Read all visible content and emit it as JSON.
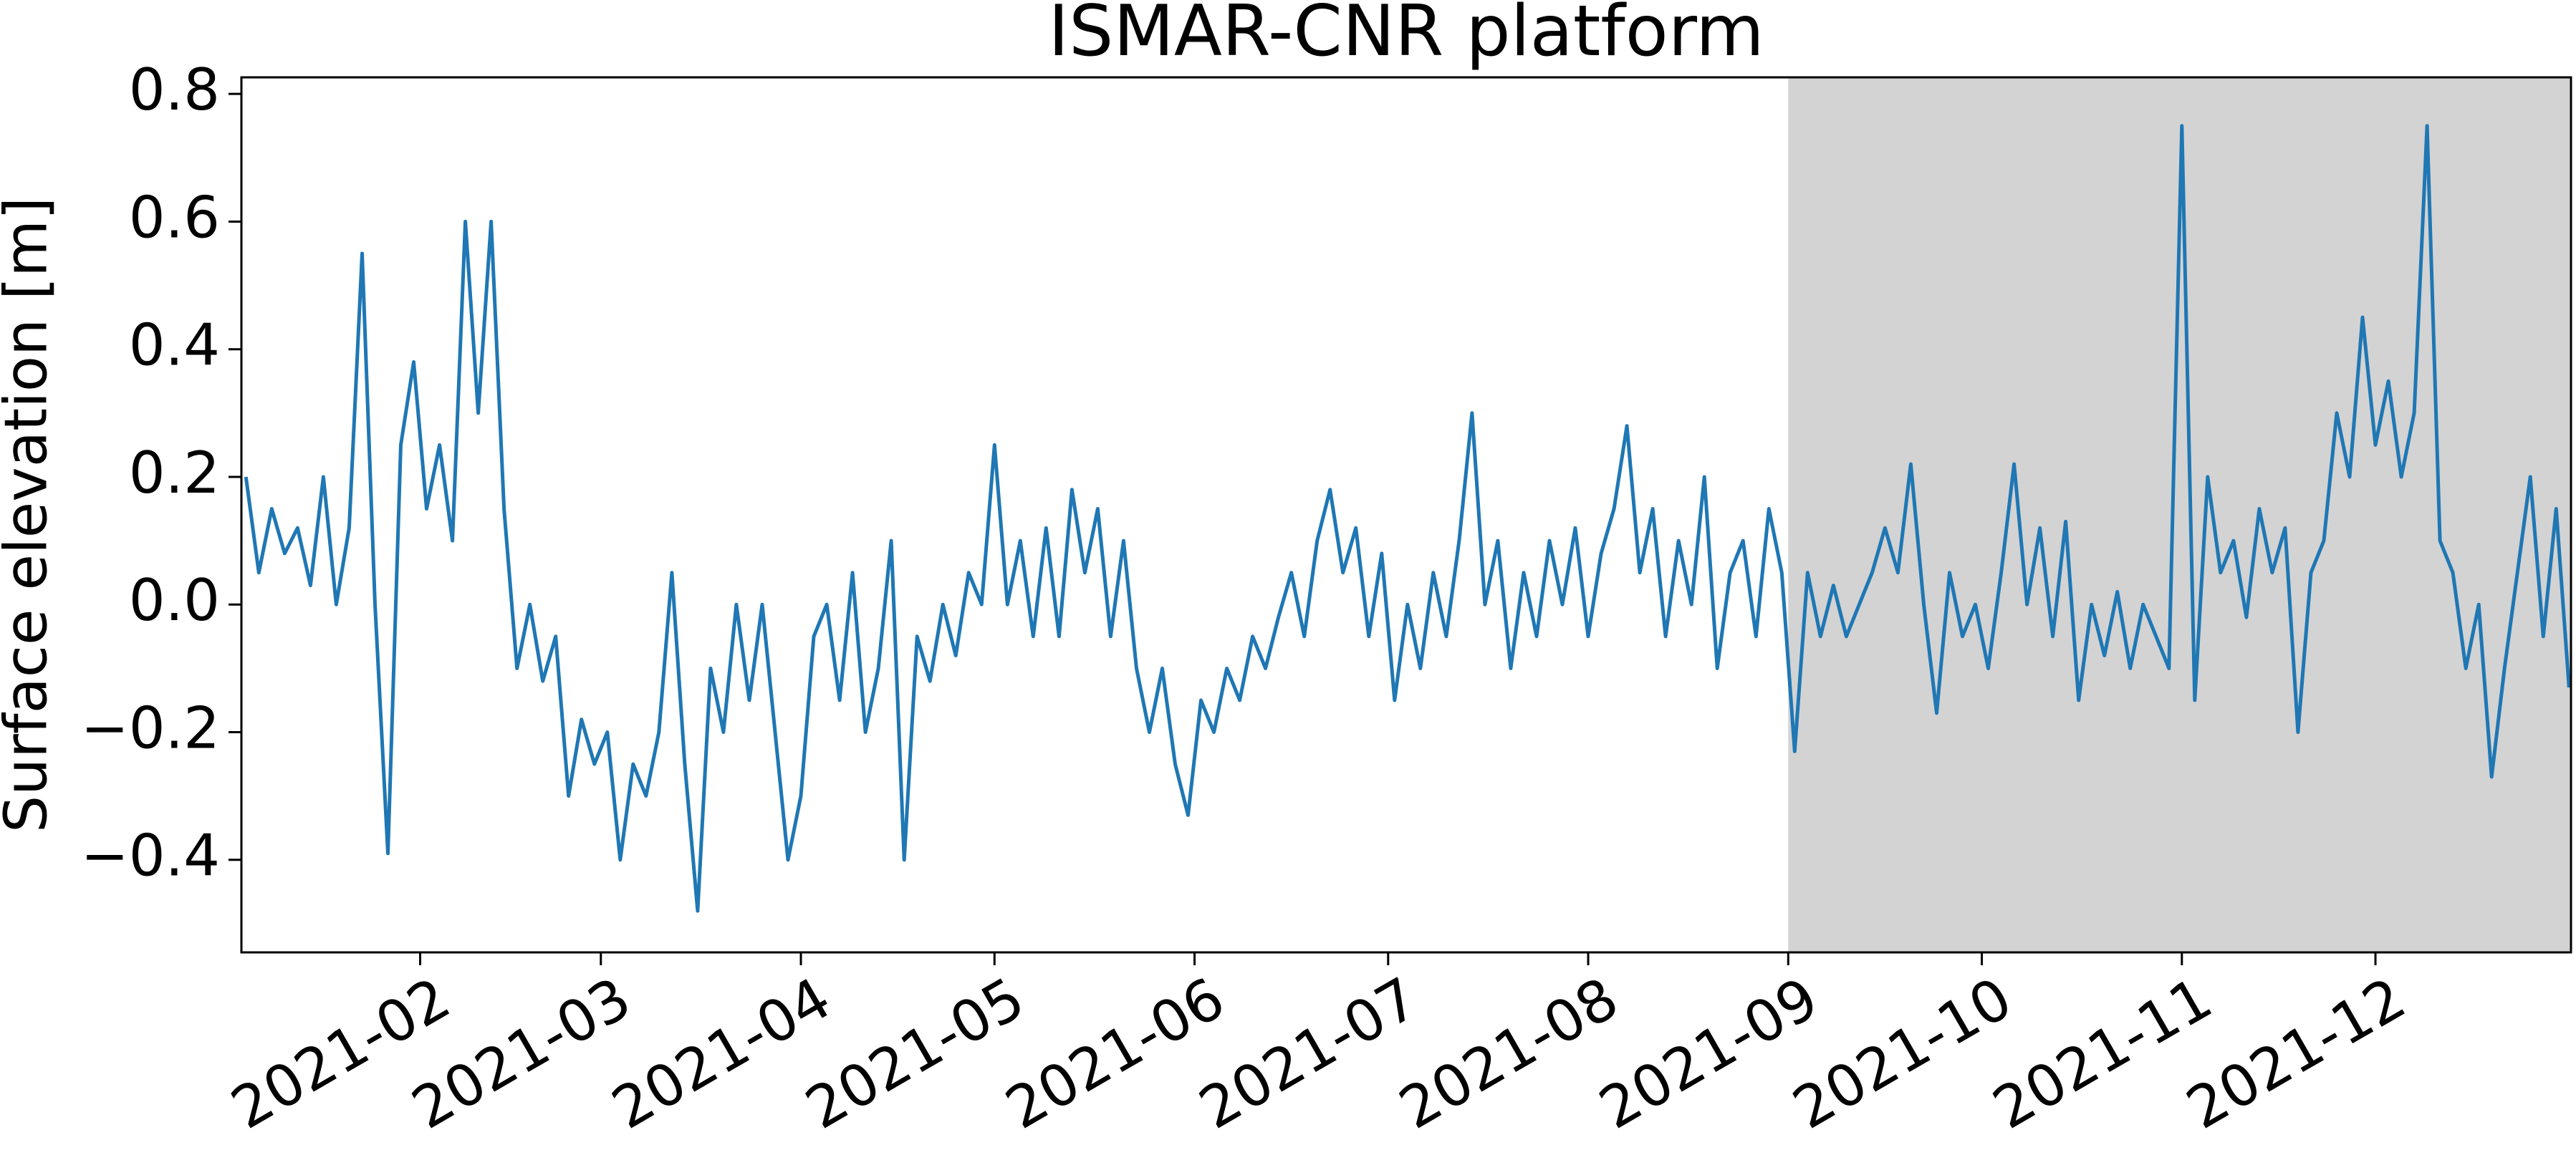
{
  "chart_data": {
    "type": "line",
    "title": "ISMAR-CNR platform",
    "ylabel": "Surface elevation [m]",
    "color": "#1f77b4",
    "x": [
      4,
      6,
      8,
      10,
      12,
      14,
      16,
      18,
      20,
      22,
      24,
      26,
      28,
      30,
      32,
      34,
      36,
      38,
      40,
      42,
      44,
      46,
      48,
      50,
      52,
      54,
      56,
      58,
      60,
      62,
      64,
      66,
      68,
      70,
      72,
      74,
      76,
      78,
      80,
      82,
      84,
      86,
      88,
      90,
      92,
      94,
      96,
      98,
      100,
      102,
      104,
      106,
      108,
      110,
      112,
      114,
      116,
      118,
      120,
      122,
      124,
      126,
      128,
      130,
      132,
      134,
      136,
      138,
      140,
      142,
      144,
      146,
      148,
      150,
      152,
      154,
      156,
      158,
      160,
      162,
      164,
      166,
      168,
      170,
      172,
      174,
      176,
      178,
      180,
      182,
      184,
      186,
      188,
      190,
      192,
      194,
      196,
      198,
      200,
      202,
      204,
      206,
      208,
      210,
      212,
      214,
      216,
      218,
      220,
      222,
      224,
      226,
      228,
      230,
      232,
      234,
      236,
      238,
      240,
      242,
      244,
      246,
      248,
      250,
      252,
      254,
      256,
      258,
      260,
      262,
      264,
      266,
      268,
      270,
      272,
      274,
      276,
      278,
      280,
      282,
      284,
      286,
      288,
      290,
      292,
      294,
      296,
      298,
      300,
      302,
      304,
      306,
      308,
      310,
      312,
      314,
      316,
      318,
      320,
      322,
      324,
      326,
      328,
      330,
      332,
      334,
      336,
      338,
      340,
      342,
      344,
      346,
      348,
      350,
      352,
      354,
      356,
      358,
      360,
      362,
      364
    ],
    "values": [
      0.2,
      0.05,
      0.15,
      0.08,
      0.12,
      0.03,
      0.2,
      0.0,
      0.12,
      0.55,
      0.0,
      -0.39,
      0.25,
      0.38,
      0.15,
      0.25,
      0.1,
      0.6,
      0.3,
      0.6,
      0.15,
      -0.1,
      0.0,
      -0.12,
      -0.05,
      -0.3,
      -0.18,
      -0.25,
      -0.2,
      -0.4,
      -0.25,
      -0.3,
      -0.2,
      0.05,
      -0.25,
      -0.48,
      -0.1,
      -0.2,
      0.0,
      -0.15,
      0.0,
      -0.2,
      -0.4,
      -0.3,
      -0.05,
      0.0,
      -0.15,
      0.05,
      -0.2,
      -0.1,
      0.1,
      -0.4,
      -0.05,
      -0.12,
      0.0,
      -0.08,
      0.05,
      0.0,
      0.25,
      0.0,
      0.1,
      -0.05,
      0.12,
      -0.05,
      0.18,
      0.05,
      0.15,
      -0.05,
      0.1,
      -0.1,
      -0.2,
      -0.1,
      -0.25,
      -0.33,
      -0.15,
      -0.2,
      -0.1,
      -0.15,
      -0.05,
      -0.1,
      -0.02,
      0.05,
      -0.05,
      0.1,
      0.18,
      0.05,
      0.12,
      -0.05,
      0.08,
      -0.15,
      0.0,
      -0.1,
      0.05,
      -0.05,
      0.1,
      0.3,
      0.0,
      0.1,
      -0.1,
      0.05,
      -0.05,
      0.1,
      0.0,
      0.12,
      -0.05,
      0.08,
      0.15,
      0.28,
      0.05,
      0.15,
      -0.05,
      0.1,
      0.0,
      0.2,
      -0.1,
      0.05,
      0.1,
      -0.05,
      0.15,
      0.05,
      -0.23,
      0.05,
      -0.05,
      0.03,
      -0.05,
      0.0,
      0.05,
      0.12,
      0.05,
      0.22,
      0.0,
      -0.17,
      0.05,
      -0.05,
      0.0,
      -0.1,
      0.05,
      0.22,
      0.0,
      0.12,
      -0.05,
      0.13,
      -0.15,
      0.0,
      -0.08,
      0.02,
      -0.1,
      0.0,
      -0.05,
      -0.1,
      0.75,
      -0.15,
      0.2,
      0.05,
      0.1,
      -0.02,
      0.15,
      0.05,
      0.12,
      -0.2,
      0.05,
      0.1,
      0.3,
      0.2,
      0.45,
      0.25,
      0.35,
      0.2,
      0.3,
      0.75,
      0.1,
      0.05,
      -0.1,
      0.0,
      -0.27,
      -0.1,
      0.05,
      0.2,
      -0.05,
      0.15,
      -0.13
    ],
    "xlim": [
      3.3,
      364.3
    ],
    "xticks": [
      {
        "value": 31,
        "label": "2021-02"
      },
      {
        "value": 59,
        "label": "2021-03"
      },
      {
        "value": 90,
        "label": "2021-04"
      },
      {
        "value": 120,
        "label": "2021-05"
      },
      {
        "value": 151,
        "label": "2021-06"
      },
      {
        "value": 181,
        "label": "2021-07"
      },
      {
        "value": 212,
        "label": "2021-08"
      },
      {
        "value": 243,
        "label": "2021-09"
      },
      {
        "value": 273,
        "label": "2021-10"
      },
      {
        "value": 304,
        "label": "2021-11"
      },
      {
        "value": 334,
        "label": "2021-12"
      }
    ],
    "ylim": [
      -0.545,
      0.826
    ],
    "yticks": [
      {
        "value": -0.4,
        "label": "−0.4"
      },
      {
        "value": -0.2,
        "label": "−0.2"
      },
      {
        "value": 0,
        "label": "0.0"
      },
      0.2,
      0.4,
      0.6,
      0.8
    ],
    "shaded_span": {
      "xlim": [
        243,
        364.3
      ],
      "color": "#d3d3d3"
    }
  }
}
